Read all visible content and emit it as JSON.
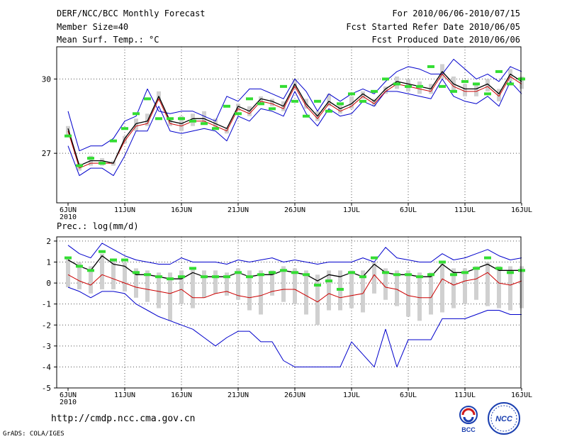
{
  "header": {
    "title": "DERF/NCC/BCC Monthly Forecast",
    "member_size": "Member Size=40",
    "variable": "Mean Surf. Temp.: °C",
    "forecast_period": "For 2010/06/06-2010/07/15",
    "refer_date": "Fcst Started Refer Date 2010/06/05",
    "produced_date": "Fcst Produced Date 2010/06/06"
  },
  "footer": {
    "url": "http://cmdp.ncc.cma.gov.cn",
    "grads": "GrADS: COLA/IGES",
    "logo_bcc": "BCC",
    "logo_ncc": "NCC"
  },
  "colors": {
    "envelope": "#0000cc",
    "mean": "#000000",
    "median": "#cc0000",
    "bar": "#d0d0d0",
    "marker": "#33dd33",
    "grid": "#555555"
  },
  "chart_data": [
    {
      "type": "line",
      "title": "Mean Surf. Temp.: °C",
      "x_ticks": [
        "6JUN",
        "11JUN",
        "16JUN",
        "21JUN",
        "26JUN",
        "1JUL",
        "6JUL",
        "11JUL",
        "16JUL"
      ],
      "x_sub": "2010",
      "ylim": [
        25.0,
        31.3
      ],
      "yticks": [
        27,
        30
      ],
      "grid": true,
      "series": [
        {
          "name": "max",
          "values": [
            28.7,
            27.1,
            27.3,
            27.3,
            27.6,
            28.3,
            28.5,
            29.6,
            28.7,
            28.6,
            28.7,
            28.7,
            28.5,
            28.3,
            29.3,
            29.1,
            29.6,
            29.6,
            29.4,
            29.2,
            30.0,
            29.5,
            28.7,
            29.4,
            29.1,
            29.4,
            29.6,
            29.4,
            29.9,
            30.3,
            30.5,
            30.4,
            30.2,
            30.2,
            30.8,
            30.4,
            30.0,
            30.2,
            29.9,
            30.5,
            30.3
          ]
        },
        {
          "name": "min",
          "values": [
            27.3,
            26.1,
            26.4,
            26.4,
            26.1,
            26.9,
            27.9,
            27.9,
            28.9,
            27.9,
            27.8,
            27.9,
            28.0,
            27.9,
            27.5,
            28.5,
            28.3,
            28.8,
            28.7,
            28.5,
            29.5,
            28.6,
            28.1,
            28.8,
            28.5,
            28.6,
            29.1,
            28.9,
            29.5,
            29.5,
            29.4,
            29.3,
            29.2,
            30.0,
            29.3,
            29.1,
            29.0,
            29.3,
            28.9,
            29.9,
            29.4
          ]
        },
        {
          "name": "mean",
          "values": [
            28.0,
            26.5,
            26.7,
            26.7,
            26.6,
            27.6,
            28.2,
            28.3,
            29.3,
            28.3,
            28.2,
            28.4,
            28.4,
            28.2,
            28.0,
            28.9,
            28.7,
            29.2,
            29.1,
            28.9,
            29.8,
            29.0,
            28.5,
            29.1,
            28.8,
            29.0,
            29.4,
            29.1,
            29.6,
            29.9,
            29.8,
            29.7,
            29.6,
            30.3,
            29.8,
            29.6,
            29.6,
            29.8,
            29.4,
            30.2,
            29.9
          ]
        },
        {
          "name": "median",
          "values": [
            27.9,
            26.4,
            26.6,
            26.6,
            26.6,
            27.5,
            28.1,
            28.2,
            29.2,
            28.2,
            28.1,
            28.3,
            28.3,
            28.1,
            27.9,
            28.8,
            28.6,
            29.1,
            29.0,
            28.8,
            29.7,
            28.9,
            28.4,
            29.0,
            28.7,
            28.9,
            29.3,
            29.0,
            29.5,
            29.8,
            29.7,
            29.6,
            29.5,
            30.2,
            29.7,
            29.5,
            29.5,
            29.7,
            29.3,
            30.1,
            29.8
          ]
        },
        {
          "name": "bar_high",
          "values": [
            28.1,
            26.6,
            26.9,
            26.8,
            26.7,
            27.7,
            28.4,
            28.6,
            29.5,
            28.4,
            28.5,
            28.6,
            28.7,
            28.4,
            28.0,
            29.0,
            28.9,
            29.3,
            29.2,
            29.1,
            30.0,
            29.2,
            28.7,
            29.4,
            29.0,
            29.3,
            29.5,
            29.2,
            29.7,
            30.1,
            30.0,
            29.9,
            29.8,
            30.6,
            30.1,
            29.8,
            29.8,
            30.0,
            29.6,
            30.4,
            30.1
          ]
        },
        {
          "name": "bar_low",
          "values": [
            27.7,
            26.3,
            26.5,
            26.5,
            26.5,
            27.4,
            27.9,
            28.1,
            29.1,
            28.1,
            27.9,
            28.1,
            28.2,
            28.0,
            27.8,
            28.7,
            28.5,
            29.0,
            28.9,
            28.7,
            29.6,
            28.8,
            28.3,
            28.9,
            28.6,
            28.8,
            29.2,
            28.9,
            29.4,
            29.6,
            29.5,
            29.4,
            29.4,
            30.0,
            29.5,
            29.3,
            29.3,
            29.5,
            29.1,
            29.9,
            29.6
          ]
        },
        {
          "name": "marker",
          "values": [
            27.7,
            26.5,
            26.8,
            26.6,
            27.5,
            28.0,
            28.6,
            29.2,
            28.4,
            28.4,
            28.4,
            28.3,
            28.2,
            28.0,
            28.9,
            28.6,
            29.2,
            29.0,
            28.8,
            29.7,
            29.1,
            28.5,
            29.1,
            28.7,
            29.0,
            29.4,
            29.1,
            29.5,
            30.0,
            29.8,
            29.7,
            29.7,
            30.5,
            29.7,
            29.5,
            29.9,
            29.8,
            29.4,
            30.3,
            29.8,
            30.0
          ]
        }
      ]
    },
    {
      "type": "line",
      "title": "Prec.: log(mm/d)",
      "x_ticks": [
        "6JUN",
        "11JUN",
        "16JUN",
        "21JUN",
        "26JUN",
        "1JUL",
        "6JUL",
        "11JUL",
        "16JUL"
      ],
      "x_sub": "2010",
      "ylim": [
        -5,
        2.2
      ],
      "yticks": [
        -5,
        -4,
        -3,
        -2,
        -1,
        0,
        1,
        2
      ],
      "grid": true,
      "series": [
        {
          "name": "max",
          "values": [
            1.8,
            1.4,
            1.2,
            1.9,
            1.6,
            1.3,
            1.1,
            1.0,
            0.9,
            0.9,
            1.2,
            1.0,
            1.0,
            1.0,
            0.9,
            1.1,
            1.0,
            1.1,
            1.2,
            1.0,
            1.1,
            1.0,
            0.9,
            1.0,
            1.0,
            1.0,
            1.2,
            1.0,
            1.7,
            1.2,
            1.1,
            1.0,
            1.0,
            1.4,
            1.1,
            1.2,
            1.4,
            1.6,
            1.3,
            1.1,
            1.2
          ]
        },
        {
          "name": "min",
          "values": [
            -0.2,
            -0.4,
            -0.7,
            -0.4,
            -0.4,
            -0.5,
            -1.0,
            -1.3,
            -1.6,
            -1.8,
            -2.0,
            -2.2,
            -2.6,
            -3.0,
            -2.6,
            -2.3,
            -2.3,
            -2.8,
            -2.8,
            -3.7,
            -4.0,
            -4.0,
            -4.0,
            -4.0,
            -4.0,
            -2.8,
            -3.4,
            -4.0,
            -2.2,
            -4.0,
            -2.7,
            -2.7,
            -2.7,
            -1.7,
            -1.7,
            -1.7,
            -1.5,
            -1.3,
            -1.3,
            -1.5,
            -1.5
          ]
        },
        {
          "name": "mean",
          "values": [
            1.1,
            0.8,
            0.6,
            1.3,
            0.9,
            0.8,
            0.4,
            0.4,
            0.3,
            0.2,
            0.2,
            0.5,
            0.3,
            0.3,
            0.3,
            0.5,
            0.3,
            0.4,
            0.4,
            0.6,
            0.5,
            0.4,
            0.1,
            0.4,
            0.3,
            0.5,
            0.3,
            0.9,
            0.5,
            0.4,
            0.4,
            0.3,
            0.3,
            0.9,
            0.5,
            0.5,
            0.7,
            0.9,
            0.6,
            0.6,
            0.6
          ]
        },
        {
          "name": "median",
          "values": [
            0.4,
            0.1,
            -0.1,
            0.4,
            0.2,
            0.0,
            -0.2,
            -0.3,
            -0.4,
            -0.5,
            -0.3,
            -0.7,
            -0.7,
            -0.5,
            -0.4,
            -0.6,
            -0.7,
            -0.6,
            -0.4,
            -0.3,
            -0.3,
            -0.6,
            -0.9,
            -0.5,
            -0.7,
            -0.6,
            -0.5,
            0.4,
            -0.2,
            -0.3,
            -0.6,
            -0.7,
            -0.7,
            0.2,
            -0.1,
            0.1,
            0.2,
            0.5,
            0.0,
            -0.1,
            0.1
          ]
        },
        {
          "name": "bar_high",
          "values": [
            1.2,
            1.0,
            0.8,
            1.4,
            1.1,
            1.0,
            0.7,
            0.6,
            0.5,
            0.5,
            0.6,
            0.7,
            0.6,
            0.6,
            0.5,
            0.7,
            0.6,
            0.6,
            0.6,
            0.8,
            0.7,
            0.6,
            0.4,
            0.6,
            0.6,
            0.6,
            0.6,
            1.0,
            0.7,
            0.6,
            0.6,
            0.5,
            0.5,
            1.0,
            0.7,
            0.7,
            0.8,
            1.0,
            0.8,
            0.8,
            0.8
          ]
        },
        {
          "name": "bar_low",
          "values": [
            -0.2,
            -0.3,
            -0.5,
            -0.3,
            -0.3,
            -0.4,
            -0.7,
            -0.9,
            -1.2,
            -1.8,
            -1.0,
            -1.2,
            -0.7,
            -0.5,
            -0.6,
            -0.8,
            -1.3,
            -1.5,
            -0.6,
            -0.9,
            -1.0,
            -1.5,
            -2.0,
            -1.3,
            -1.3,
            -1.2,
            -1.4,
            -0.5,
            -0.8,
            -1.1,
            -1.6,
            -1.8,
            -1.5,
            -1.4,
            -1.2,
            -1.0,
            -0.8,
            -1.1,
            -1.2,
            -1.3,
            -1.2
          ]
        },
        {
          "name": "marker",
          "values": [
            1.2,
            0.8,
            0.6,
            1.5,
            1.1,
            1.1,
            0.5,
            0.4,
            0.3,
            0.2,
            0.3,
            0.7,
            0.3,
            0.3,
            0.3,
            0.5,
            0.3,
            0.4,
            0.5,
            0.6,
            0.5,
            0.4,
            -0.1,
            0.1,
            -0.3,
            0.5,
            0.3,
            1.2,
            0.5,
            0.4,
            0.4,
            0.3,
            0.4,
            1.0,
            0.4,
            0.5,
            0.7,
            1.2,
            0.7,
            0.5,
            0.6
          ]
        }
      ]
    }
  ]
}
